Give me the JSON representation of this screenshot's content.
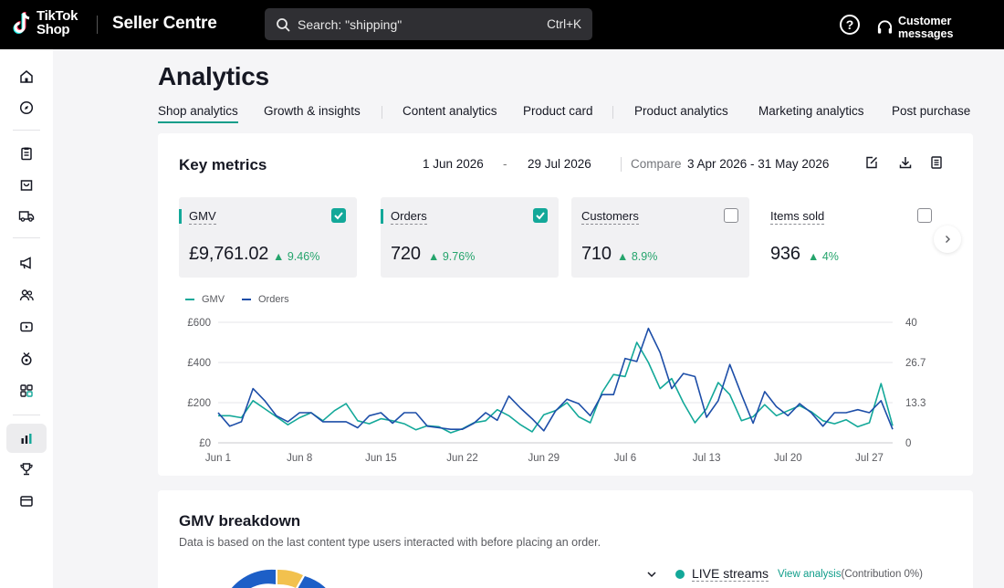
{
  "header": {
    "logo_line1": "TikTok",
    "logo_line2": "Shop",
    "brand": "Seller Centre",
    "search_text": "Search: \"shipping\"",
    "search_shortcut": "Ctrl+K",
    "help_glyph": "?",
    "customer_messages": "Customer messages"
  },
  "sidebar": {
    "items": [
      "home-icon",
      "explore-icon",
      "orders-icon",
      "products-icon",
      "shipping-icon",
      "marketing-icon",
      "affiliate-icon",
      "live-video-icon",
      "rewards-icon",
      "apps-icon",
      "analytics-icon",
      "trophy-icon",
      "finance-icon"
    ],
    "active": "analytics-icon"
  },
  "page": {
    "title": "Analytics",
    "tabs": [
      "Shop analytics",
      "Growth & insights",
      "Content analytics",
      "Product card",
      "Product analytics",
      "Marketing analytics",
      "Post purchase"
    ],
    "active_tab": "Shop analytics"
  },
  "key_metrics": {
    "title": "Key metrics",
    "date_start": "1 Jun 2026",
    "date_dash": "-",
    "date_end": "29 Jul 2026",
    "compare_label": "Compare",
    "compare_range": "3 Apr 2026 - 31 May 2026",
    "metrics": [
      {
        "name": "GMV",
        "value": "£9,761.02",
        "change": "9.46%",
        "selected": true,
        "color": "#13a899"
      },
      {
        "name": "Orders",
        "value": "720",
        "change": "9.76%",
        "selected": true,
        "color": "#13a899"
      },
      {
        "name": "Customers",
        "value": "710",
        "change": "8.9%",
        "selected": false
      },
      {
        "name": "Items sold",
        "value": "936",
        "change": "4%",
        "selected": false
      }
    ]
  },
  "chart_data": {
    "type": "line",
    "x_tick_labels": [
      "Jun 1",
      "Jun 8",
      "Jun 15",
      "Jun 22",
      "Jun 29",
      "Jul 6",
      "Jul 13",
      "Jul 20",
      "Jul 27"
    ],
    "y_left_ticks": [
      "£0",
      "£200",
      "£400",
      "£600"
    ],
    "y_right_ticks": [
      "0",
      "13.3",
      "26.7",
      "40"
    ],
    "y_left_range": [
      0,
      600
    ],
    "y_right_range": [
      0,
      40
    ],
    "grid": true,
    "legend_position": "top-left",
    "x": [
      "Jun 1",
      "Jun 2",
      "Jun 3",
      "Jun 4",
      "Jun 5",
      "Jun 6",
      "Jun 7",
      "Jun 8",
      "Jun 9",
      "Jun 10",
      "Jun 11",
      "Jun 12",
      "Jun 13",
      "Jun 14",
      "Jun 15",
      "Jun 16",
      "Jun 17",
      "Jun 18",
      "Jun 19",
      "Jun 20",
      "Jun 21",
      "Jun 22",
      "Jun 23",
      "Jun 24",
      "Jun 25",
      "Jun 26",
      "Jun 27",
      "Jun 28",
      "Jun 29",
      "Jun 30",
      "Jul 1",
      "Jul 2",
      "Jul 3",
      "Jul 4",
      "Jul 5",
      "Jul 6",
      "Jul 7",
      "Jul 8",
      "Jul 9",
      "Jul 10",
      "Jul 11",
      "Jul 12",
      "Jul 13",
      "Jul 14",
      "Jul 15",
      "Jul 16",
      "Jul 17",
      "Jul 18",
      "Jul 19",
      "Jul 20",
      "Jul 21",
      "Jul 22",
      "Jul 23",
      "Jul 24",
      "Jul 25",
      "Jul 26",
      "Jul 27",
      "Jul 28",
      "Jul 29"
    ],
    "series": [
      {
        "name": "GMV",
        "axis": "left",
        "color": "#13a899",
        "values": [
          135,
          135,
          125,
          210,
          170,
          130,
          90,
          125,
          150,
          110,
          160,
          195,
          110,
          95,
          120,
          110,
          95,
          65,
          85,
          80,
          50,
          70,
          100,
          110,
          165,
          135,
          90,
          55,
          140,
          160,
          200,
          130,
          100,
          250,
          340,
          330,
          500,
          400,
          270,
          320,
          200,
          100,
          170,
          300,
          240,
          110,
          130,
          190,
          135,
          160,
          185,
          155,
          110,
          95,
          115,
          80,
          100,
          295,
          85
        ]
      },
      {
        "name": "Orders",
        "axis": "right",
        "color": "#1d4ea8",
        "values": [
          10,
          5.5,
          7,
          18,
          14,
          9,
          7,
          10,
          10,
          7,
          7,
          7,
          5,
          9,
          10,
          6.5,
          10,
          10,
          5.5,
          5,
          4.5,
          4.5,
          6.5,
          10,
          7.5,
          15.5,
          11.5,
          8,
          4,
          10.5,
          14.5,
          13,
          9,
          16,
          16,
          28,
          27,
          38,
          30,
          18,
          23,
          22,
          8.5,
          14,
          26,
          16,
          6.5,
          17,
          12,
          9,
          13,
          10,
          5.5,
          10,
          10,
          11,
          10,
          14,
          4.5
        ]
      }
    ]
  },
  "gmv_breakdown": {
    "title": "GMV breakdown",
    "subtitle": "Data is based on the last content type users interacted with before placing an order.",
    "rows": [
      {
        "name": "LIVE streams",
        "link": "View analysis",
        "contribution": "(Contribution 0%)"
      }
    ]
  },
  "colors": {
    "accent": "#13a899",
    "orders_line": "#1d4ea8",
    "positive": "#25a46c"
  }
}
